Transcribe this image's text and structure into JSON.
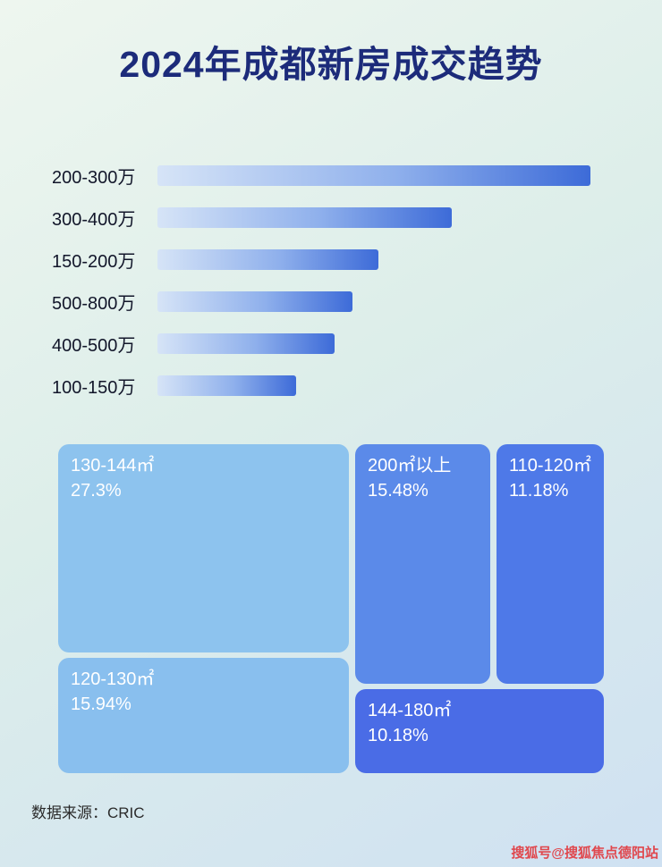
{
  "page": {
    "title": "2024年成都新房成交趋势",
    "footer": "数据来源：CRIC",
    "watermark": "搜狐号@搜狐焦点德阳站"
  },
  "colors": {
    "title": "#1c2b7a",
    "background_top": "#eef6ef",
    "background_bottom": "#cfe1f2",
    "bar_gradient": [
      "#d6e4f7",
      "#8fb0ec",
      "#3d6bd8"
    ],
    "treemap_blocks": [
      "#8dc3ee",
      "#89bfee",
      "#5b8ae9",
      "#4e79e8",
      "#4a6ce6"
    ],
    "watermark": "#e0484e"
  },
  "chart_data": [
    {
      "type": "bar",
      "orientation": "horizontal",
      "title": "2024年成都新房成交趋势",
      "categories": [
        "200-300万",
        "300-400万",
        "150-200万",
        "500-800万",
        "400-500万",
        "100-150万"
      ],
      "values": [
        100,
        68,
        51,
        45,
        41,
        32
      ],
      "value_note": "bars carry no numeric labels in the image; values are estimated bar lengths as percent of the longest bar",
      "xlabel": "",
      "ylabel": "",
      "grid": false,
      "legend": false
    },
    {
      "type": "treemap",
      "title": "",
      "items": [
        {
          "label": "130-144㎡",
          "value": 27.3,
          "display": "27.3%"
        },
        {
          "label": "120-130㎡",
          "value": 15.94,
          "display": "15.94%"
        },
        {
          "label": "200㎡以上",
          "value": 15.48,
          "display": "15.48%"
        },
        {
          "label": "110-120㎡",
          "value": 11.18,
          "display": "11.18%"
        },
        {
          "label": "144-180㎡",
          "value": 10.18,
          "display": "10.18%"
        }
      ]
    }
  ]
}
